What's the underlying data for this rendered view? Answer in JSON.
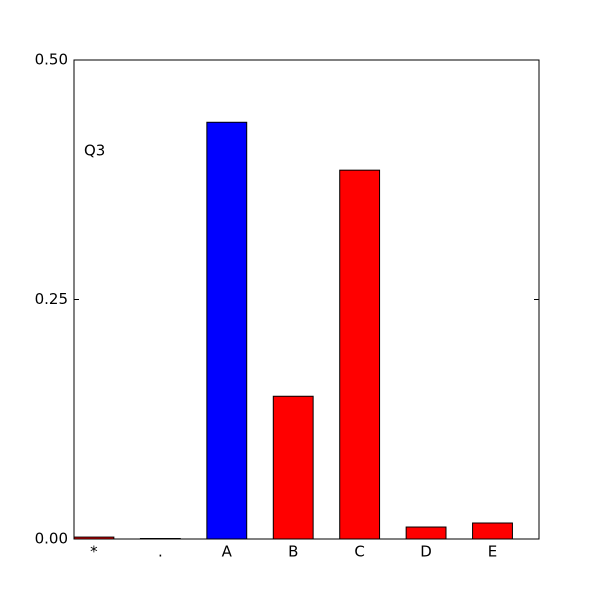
{
  "chart_data": {
    "type": "bar",
    "annotation": "Q3",
    "categories": [
      "*",
      ".",
      "A",
      "B",
      "C",
      "D",
      "E"
    ],
    "values": [
      0.002,
      0.0005,
      0.435,
      0.149,
      0.385,
      0.0125,
      0.0167
    ],
    "colors": [
      "#ff0000",
      "#ff0000",
      "#0000ff",
      "#ff0000",
      "#ff0000",
      "#ff0000",
      "#ff0000"
    ],
    "ylim": [
      0,
      0.5
    ],
    "yticks": [
      {
        "value": 0,
        "label": "0.00"
      },
      0.25,
      {
        "value": 0.5,
        "label": "0.50"
      }
    ],
    "grid": false
  }
}
